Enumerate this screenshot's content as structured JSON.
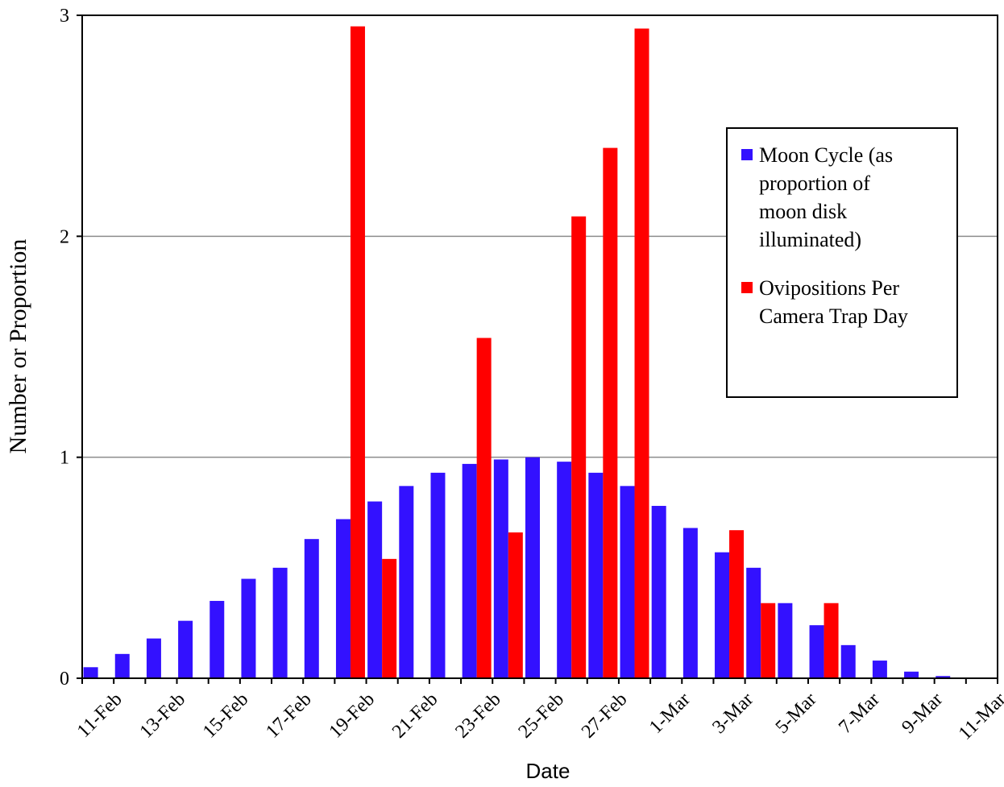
{
  "chart_data": {
    "type": "bar",
    "title": "",
    "xlabel": "Date",
    "ylabel": "Number or Proportion",
    "ylim": [
      0,
      3
    ],
    "yticks": [
      "0",
      "1",
      "2",
      "3"
    ],
    "grid": true,
    "legend_position": "top-right",
    "tick_labels": [
      "11-Feb",
      "13-Feb",
      "15-Feb",
      "17-Feb",
      "19-Feb",
      "21-Feb",
      "23-Feb",
      "25-Feb",
      "27-Feb",
      "1-Mar",
      "3-Mar",
      "5-Mar",
      "7-Mar",
      "9-Mar",
      "11-Mar"
    ],
    "categories": [
      "11-Feb",
      "12-Feb",
      "13-Feb",
      "14-Feb",
      "15-Feb",
      "16-Feb",
      "17-Feb",
      "18-Feb",
      "19-Feb",
      "20-Feb",
      "21-Feb",
      "22-Feb",
      "23-Feb",
      "24-Feb",
      "25-Feb",
      "26-Feb",
      "27-Feb",
      "28-Feb",
      "1-Mar",
      "2-Mar",
      "3-Mar",
      "4-Mar",
      "5-Mar",
      "6-Mar",
      "7-Mar",
      "8-Mar",
      "9-Mar",
      "10-Mar",
      "11-Mar"
    ],
    "series": [
      {
        "name": "Moon Cycle (as proportion of moon disk illuminated)",
        "legend_lines": [
          "Moon Cycle (as",
          "proportion of",
          "moon disk",
          "illuminated)"
        ],
        "color": "#3311ff",
        "values": [
          0.05,
          0.11,
          0.18,
          0.26,
          0.35,
          0.45,
          0.5,
          0.63,
          0.72,
          0.8,
          0.87,
          0.93,
          0.97,
          0.99,
          1.0,
          0.98,
          0.93,
          0.87,
          0.78,
          0.68,
          0.57,
          0.5,
          0.34,
          0.24,
          0.15,
          0.08,
          0.03,
          0.01,
          0.0
        ]
      },
      {
        "name": "Ovipositions Per Camera Trap Day",
        "legend_lines": [
          "Ovipositions Per",
          "Camera Trap Day"
        ],
        "color": "#ff0000",
        "values": [
          0,
          0,
          0,
          0,
          0,
          0,
          0,
          0,
          2.95,
          0.54,
          0,
          0,
          1.54,
          0.66,
          0,
          2.09,
          2.4,
          2.94,
          0,
          0,
          0.67,
          0.34,
          0,
          0.34,
          0,
          0,
          0,
          0,
          0
        ]
      }
    ]
  }
}
